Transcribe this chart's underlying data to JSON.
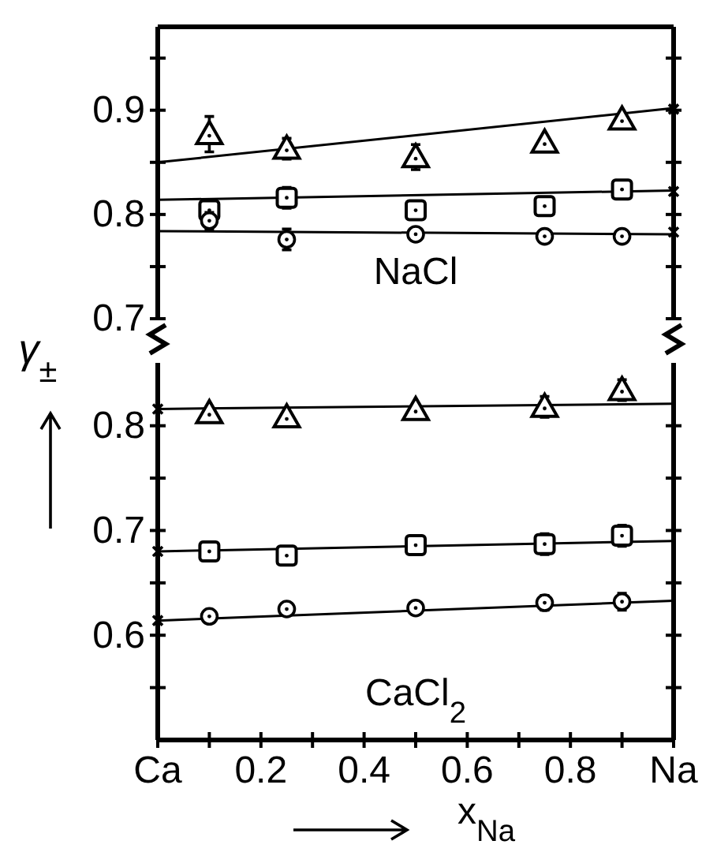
{
  "chart_data": [
    {
      "type": "scatter",
      "ylabel": "γ$_{±}$",
      "annotations": [
        "NaCl"
      ],
      "xlim": [
        0,
        1
      ],
      "ylim": [
        0.7,
        0.98
      ],
      "tick_labels": "y",
      "yticks": [
        0.7,
        {
          "value": 0.75,
          "label": null
        },
        0.8,
        {
          "value": 0.85,
          "label": null
        },
        0.9,
        {
          "value": 0.95,
          "label": null
        }
      ],
      "series": [
        {
          "type": "line",
          "color": "#000000",
          "x": [
            0,
            1
          ],
          "values": [
            0.85,
            0.902
          ]
        },
        {
          "type": "line",
          "color": "#000000",
          "x": [
            0,
            1
          ],
          "values": [
            0.814,
            0.823
          ]
        },
        {
          "type": "line",
          "color": "#000000",
          "x": [
            0,
            1
          ],
          "values": [
            0.784,
            0.781
          ]
        },
        {
          "marker": "triangle",
          "color": "#000000",
          "x": [
            0.1,
            0.25,
            0.5,
            0.75,
            0.9
          ],
          "values": [
            0.877,
            0.863,
            0.855,
            0.869,
            0.891
          ],
          "errors": [
            0.017,
            0.01,
            0.012,
            null,
            null
          ]
        },
        {
          "type": "scatter",
          "marker": "square",
          "color": "#000000",
          "x": [
            0.1,
            0.25,
            0.5,
            0.75,
            0.9
          ],
          "values": [
            0.804,
            0.816,
            0.804,
            0.808,
            0.824
          ],
          "errors": [
            0.01,
            0.01,
            null,
            null,
            null
          ]
        },
        {
          "type": "scatter",
          "marker": "circle",
          "color": "#000000",
          "x": [
            0.1,
            0.25,
            0.5,
            0.75,
            0.9
          ],
          "values": [
            0.794,
            0.776,
            0.781,
            0.779,
            0.779
          ],
          "errors": [
            0.008,
            0.01,
            null,
            null,
            null
          ]
        },
        {
          "type": "scatter",
          "marker": "cross",
          "color": "#000000",
          "x": [
            1,
            1,
            1
          ],
          "values": [
            0.901,
            0.822,
            0.783
          ]
        }
      ]
    },
    {
      "type": "scatter",
      "xlabel": "x$_{Na}$",
      "annotations": [
        "CaCl$_{2}$"
      ],
      "xlim": [
        0,
        1
      ],
      "ylim": [
        0.5,
        0.86
      ],
      "xticks": [
        {
          "value": 0,
          "label": "Ca"
        },
        {
          "value": 0.1,
          "label": null
        },
        0.2,
        {
          "value": 0.3,
          "label": null
        },
        0.4,
        {
          "value": 0.5,
          "label": null
        },
        0.6,
        {
          "value": 0.7,
          "label": null
        },
        0.8,
        {
          "value": 0.9,
          "label": null
        },
        {
          "value": 1,
          "label": "Na"
        }
      ],
      "yticks": [
        {
          "value": 0.55,
          "label": null
        },
        0.6,
        {
          "value": 0.65,
          "label": null
        },
        0.7,
        {
          "value": 0.75,
          "label": null
        },
        0.8
      ],
      "series": [
        {
          "type": "line",
          "color": "#000000",
          "x": [
            0,
            1
          ],
          "values": [
            0.816,
            0.821
          ]
        },
        {
          "type": "line",
          "color": "#000000",
          "x": [
            0,
            1
          ],
          "values": [
            0.68,
            0.69
          ]
        },
        {
          "type": "line",
          "color": "#000000",
          "x": [
            0,
            1
          ],
          "values": [
            0.614,
            0.633
          ]
        },
        {
          "marker": "triangle",
          "color": "#000000",
          "x": [
            0.1,
            0.25,
            0.5,
            0.75,
            0.9
          ],
          "values": [
            0.812,
            0.808,
            0.815,
            0.818,
            0.834
          ],
          "errors": [
            null,
            null,
            null,
            0.01,
            0.01
          ]
        },
        {
          "type": "scatter",
          "marker": "square",
          "color": "#000000",
          "x": [
            0.1,
            0.25,
            0.5,
            0.75,
            0.9
          ],
          "values": [
            0.68,
            0.676,
            0.686,
            0.687,
            0.695
          ],
          "errors": [
            null,
            null,
            null,
            0.01,
            0.01
          ]
        },
        {
          "type": "scatter",
          "marker": "circle",
          "color": "#000000",
          "x": [
            0.1,
            0.25,
            0.5,
            0.75,
            0.9
          ],
          "values": [
            0.618,
            0.625,
            0.626,
            0.631,
            0.632
          ],
          "errors": [
            null,
            null,
            null,
            0.007,
            0.008
          ]
        },
        {
          "type": "scatter",
          "marker": "cross",
          "color": "#000000",
          "x": [
            0,
            0,
            0
          ],
          "values": [
            0.816,
            0.68,
            0.614
          ]
        }
      ]
    }
  ]
}
